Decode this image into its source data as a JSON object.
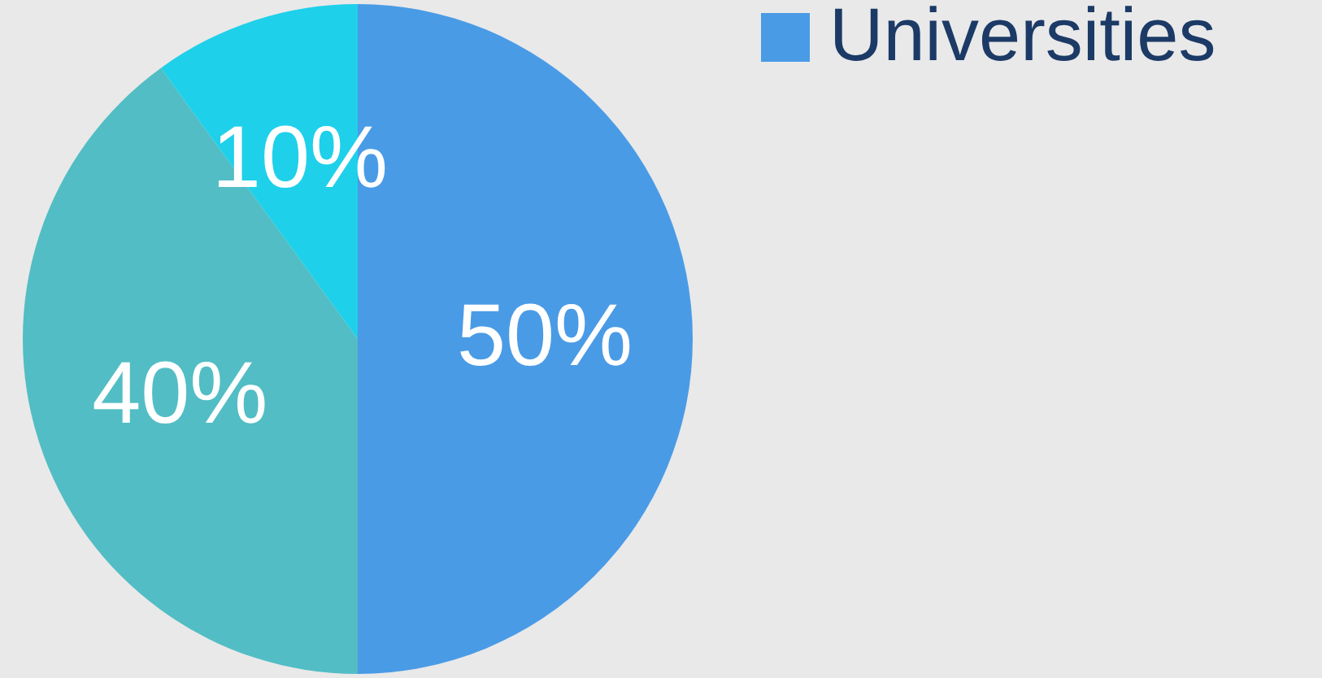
{
  "chart_data": {
    "type": "pie",
    "categories": [
      "Universities",
      null,
      null
    ],
    "values": [
      50,
      40,
      10
    ],
    "colors": [
      "#4a9be6",
      "#52bdc4",
      "#1fd0ea"
    ],
    "value_labels": [
      "50%",
      "40%",
      "10%"
    ],
    "legend": "right"
  }
}
